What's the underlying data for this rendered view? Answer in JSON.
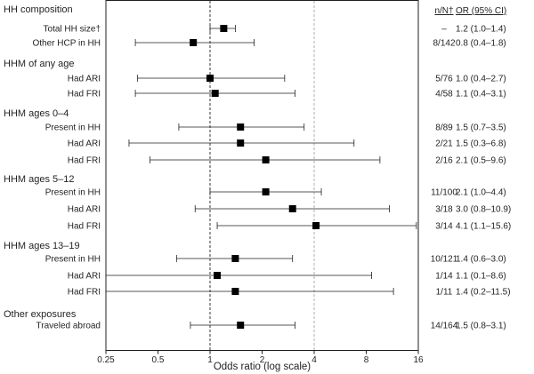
{
  "chart_data": {
    "type": "forest",
    "xlabel": "Odds ratio (log scale)",
    "x_scale": "log2",
    "xlim": [
      0.25,
      16
    ],
    "x_ticks": [
      "0.25",
      "0.5",
      "1",
      "2",
      "4",
      "8",
      "16"
    ],
    "reference_line": 1,
    "guide_line": 4,
    "columns": {
      "n": "n/N†",
      "or": "OR (95% CI)"
    },
    "groups": [
      {
        "label": "HH composition",
        "rows": [
          {
            "label": "Total HH size†",
            "n": "–",
            "or_text": "1.2 (1.0–1.4)",
            "or": 1.2,
            "lo": 1.0,
            "hi": 1.4
          },
          {
            "label": "Other HCP in HH",
            "n": "8/142",
            "or_text": "0.8 (0.4–1.8)",
            "or": 0.8,
            "lo": 0.37,
            "hi": 1.8
          }
        ]
      },
      {
        "label": "HHM of any age",
        "rows": [
          {
            "label": "Had ARI",
            "n": "5/76",
            "or_text": "1.0 (0.4–2.7)",
            "or": 1.0,
            "lo": 0.38,
            "hi": 2.7
          },
          {
            "label": "Had FRI",
            "n": "4/58",
            "or_text": "1.1 (0.4–3.1)",
            "or": 1.07,
            "lo": 0.37,
            "hi": 3.1
          }
        ]
      },
      {
        "label": "HHM ages 0–4",
        "rows": [
          {
            "label": "Present in HH",
            "n": "8/89",
            "or_text": "1.5 (0.7–3.5)",
            "or": 1.5,
            "lo": 0.66,
            "hi": 3.5
          },
          {
            "label": "Had ARI",
            "n": "2/21",
            "or_text": "1.5 (0.3–6.8)",
            "or": 1.5,
            "lo": 0.34,
            "hi": 6.8
          },
          {
            "label": "Had FRI",
            "n": "2/16",
            "or_text": "2.1 (0.5–9.6)",
            "or": 2.1,
            "lo": 0.45,
            "hi": 9.6
          }
        ]
      },
      {
        "label": "HHM ages 5–12",
        "rows": [
          {
            "label": "Present in HH",
            "n": "11/100",
            "or_text": "2.1 (1.0–4.4)",
            "or": 2.1,
            "lo": 1.0,
            "hi": 4.4
          },
          {
            "label": "Had ARI",
            "n": "3/18",
            "or_text": "3.0 (0.8–10.9)",
            "or": 3.0,
            "lo": 0.82,
            "hi": 10.9
          },
          {
            "label": "Had FRI",
            "n": "3/14",
            "or_text": "4.1 (1.1–15.6)",
            "or": 4.1,
            "lo": 1.1,
            "hi": 15.6
          }
        ]
      },
      {
        "label": "HHM ages 13–19",
        "rows": [
          {
            "label": "Present in HH",
            "n": "10/121",
            "or_text": "1.4 (0.6–3.0)",
            "or": 1.4,
            "lo": 0.64,
            "hi": 3.0
          },
          {
            "label": "Had ARI",
            "n": "1/14",
            "or_text": "1.1 (0.1–8.6)",
            "or": 1.1,
            "lo": 0.25,
            "hi": 8.6
          },
          {
            "label": "Had FRI",
            "n": "1/11",
            "or_text": "1.4 (0.2–11.5)",
            "or": 1.4,
            "lo": 0.25,
            "hi": 11.5
          }
        ]
      },
      {
        "label": "Other exposures",
        "rows": [
          {
            "label": "Traveled abroad",
            "n": "14/164",
            "or_text": "1.5 (0.8–3.1)",
            "or": 1.5,
            "lo": 0.77,
            "hi": 3.1
          }
        ]
      }
    ]
  }
}
